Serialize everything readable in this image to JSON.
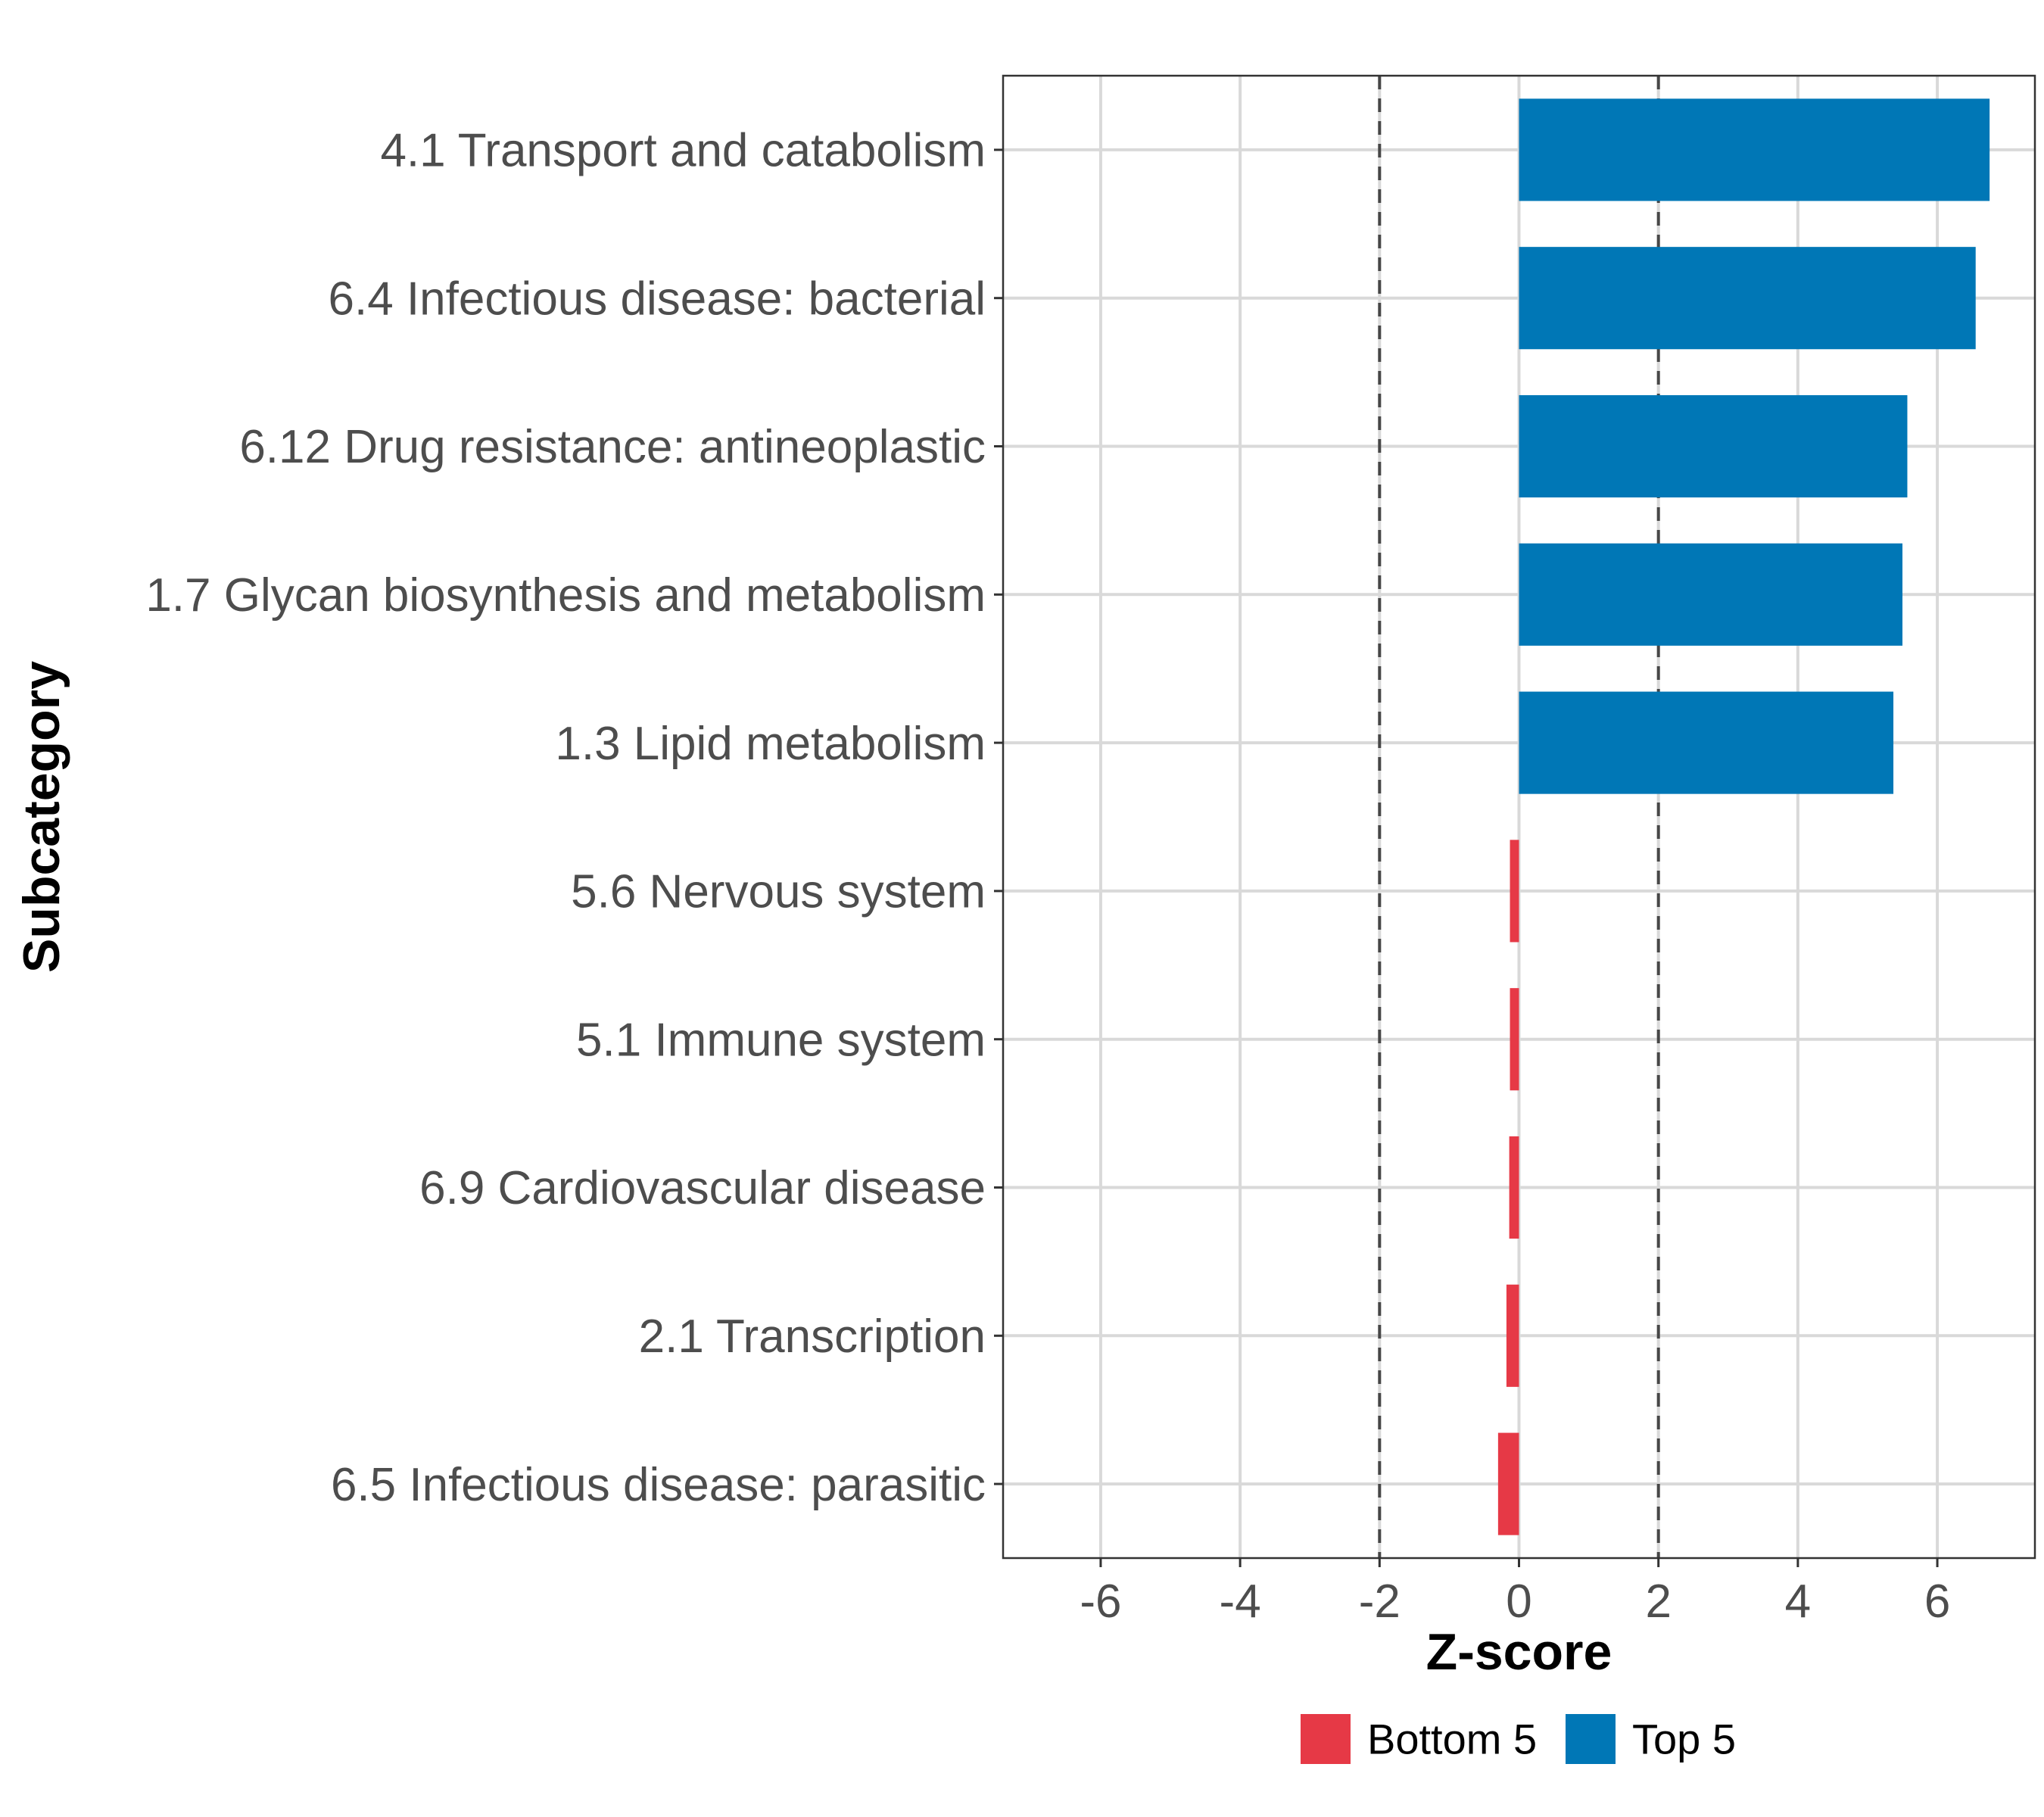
{
  "chart_data": {
    "type": "bar",
    "orientation": "horizontal",
    "title": "",
    "xlabel": "Z-score",
    "ylabel": "Subcategory",
    "xlim": [
      -7.4,
      7.4
    ],
    "xticks": [
      -6,
      -4,
      -2,
      0,
      2,
      4,
      6
    ],
    "xtick_labels": [
      "-6",
      "-4",
      "-2",
      "0",
      "2",
      "4",
      "6"
    ],
    "reference_lines": [
      -2,
      2
    ],
    "grid": true,
    "categories": [
      "4.1 Transport and catabolism",
      "6.4 Infectious disease: bacterial",
      "6.12 Drug resistance: antineoplastic",
      "1.7 Glycan biosynthesis and metabolism",
      "1.3 Lipid metabolism",
      "5.6 Nervous system",
      "5.1 Immune system",
      "6.9 Cardiovascular disease",
      "2.1 Transcription",
      "6.5 Infectious disease: parasitic"
    ],
    "values": [
      6.75,
      6.55,
      5.57,
      5.5,
      5.37,
      -0.13,
      -0.13,
      -0.14,
      -0.18,
      -0.3
    ],
    "groups": [
      "Top 5",
      "Top 5",
      "Top 5",
      "Top 5",
      "Top 5",
      "Bottom 5",
      "Bottom 5",
      "Bottom 5",
      "Bottom 5",
      "Bottom 5"
    ],
    "legend": {
      "position": "bottom",
      "entries": [
        {
          "label": "Bottom 5",
          "color": "#e63946"
        },
        {
          "label": "Top 5",
          "color": "#0077b6"
        }
      ]
    }
  }
}
